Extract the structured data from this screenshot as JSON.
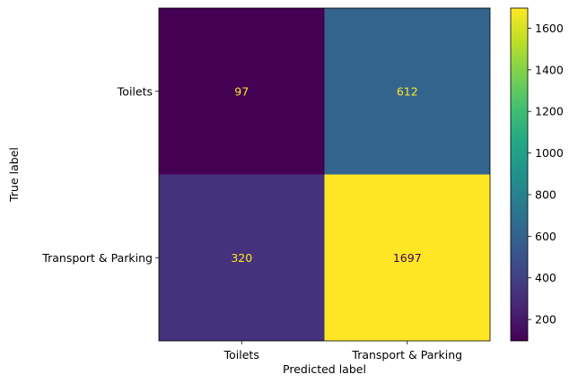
{
  "chart_data": {
    "type": "heatmap",
    "title": "",
    "xlabel": "Predicted label",
    "ylabel": "True label",
    "x_categories": [
      "Toilets",
      "Transport & Parking"
    ],
    "y_categories": [
      "Toilets",
      "Transport & Parking"
    ],
    "values": [
      [
        97,
        612
      ],
      [
        320,
        1697
      ]
    ],
    "colormap": "viridis",
    "colorbar": {
      "range": [
        97,
        1697
      ],
      "ticks": [
        200,
        400,
        600,
        800,
        1000,
        1200,
        1400,
        1600
      ]
    },
    "grid": false,
    "colors": {
      "text_on_dark": "#fde725",
      "text_on_light": "#440154"
    }
  }
}
